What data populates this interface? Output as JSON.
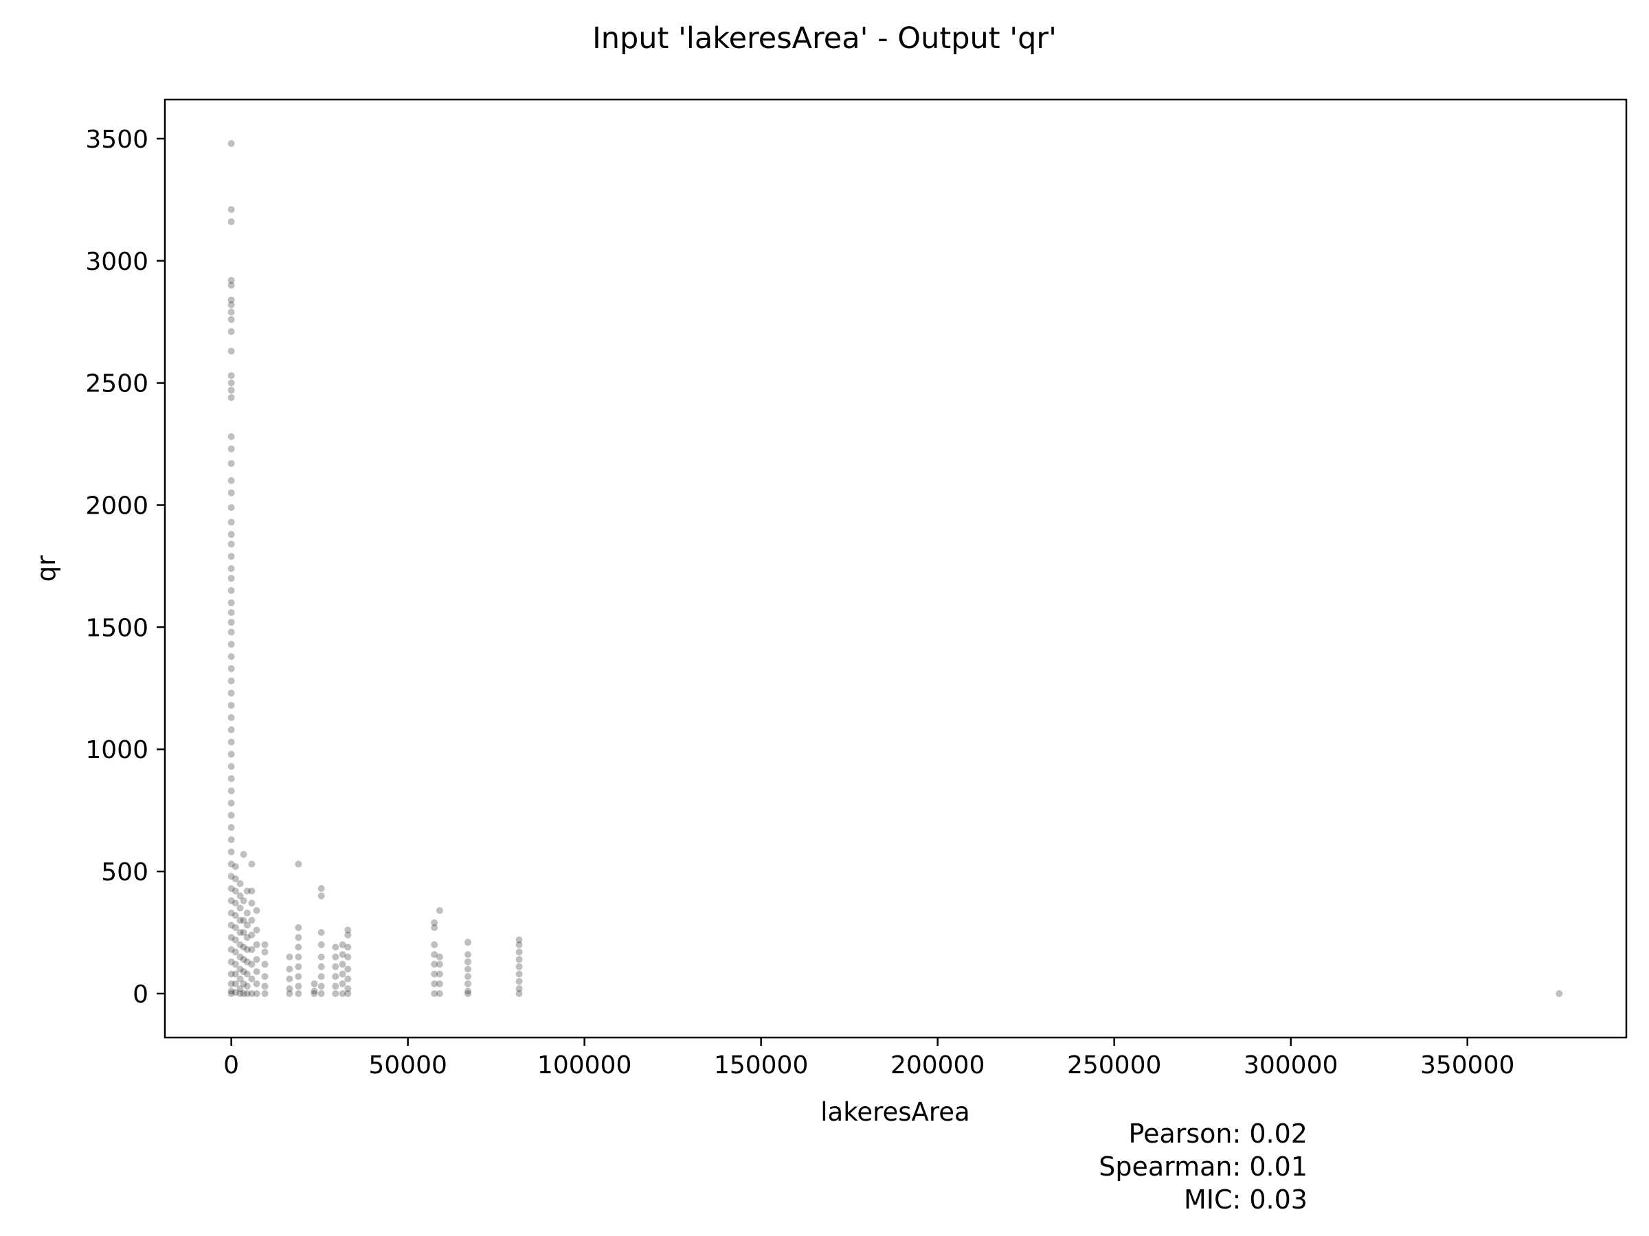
{
  "chart_data": {
    "type": "scatter",
    "title": "Input 'lakeresArea' - Output 'qr'",
    "xlabel": "lakeresArea",
    "ylabel": "qr",
    "xlim": [
      -18800,
      395000
    ],
    "ylim": [
      -180,
      3660
    ],
    "xticks": [
      0,
      50000,
      100000,
      150000,
      200000,
      250000,
      300000,
      350000
    ],
    "yticks": [
      0,
      500,
      1000,
      1500,
      2000,
      2500,
      3000,
      3500
    ],
    "grid": false,
    "legend": "none",
    "marker_color": "#000000",
    "marker_opacity": 0.25,
    "stats": [
      {
        "label": "Pearson:",
        "value": "0.02"
      },
      {
        "label": "Spearman:",
        "value": "0.01"
      },
      {
        "label": "MIC:",
        "value": "0.03"
      }
    ],
    "columns": [
      {
        "x": 0,
        "y": [
          3480,
          3210,
          3160,
          2920,
          2900,
          2840,
          2820,
          2790,
          2760,
          2710,
          2630,
          2530,
          2500,
          2470,
          2440,
          2280,
          2230,
          2170,
          2100,
          2050,
          1990,
          1930,
          1880,
          1840,
          1790,
          1740,
          1700,
          1650,
          1600,
          1560,
          1520,
          1480,
          1430,
          1380,
          1330,
          1280,
          1230,
          1180,
          1130,
          1080,
          1030,
          980,
          930,
          880,
          830,
          780,
          730,
          680,
          630,
          580,
          530,
          480,
          430,
          380,
          330,
          280,
          230,
          180,
          130,
          80,
          40,
          10,
          0
        ]
      },
      {
        "x": 1200,
        "y": [
          520,
          470,
          420,
          370,
          320,
          270,
          220,
          170,
          120,
          80,
          40,
          5
        ]
      },
      {
        "x": 2500,
        "y": [
          450,
          400,
          350,
          300,
          250,
          200,
          150,
          100,
          60,
          20,
          0
        ]
      },
      {
        "x": 3500,
        "y": [
          570,
          380,
          300,
          250,
          190,
          140,
          90,
          40,
          0
        ]
      },
      {
        "x": 4500,
        "y": [
          420,
          330,
          280,
          230,
          180,
          130,
          80,
          30,
          0
        ]
      },
      {
        "x": 5800,
        "y": [
          530,
          420,
          370,
          300,
          240,
          180,
          120,
          60,
          0
        ]
      },
      {
        "x": 7200,
        "y": [
          340,
          260,
          200,
          140,
          90,
          40,
          0
        ]
      },
      {
        "x": 9500,
        "y": [
          200,
          170,
          120,
          70,
          30,
          0
        ]
      },
      {
        "x": 16500,
        "y": [
          150,
          100,
          60,
          20,
          0
        ]
      },
      {
        "x": 19000,
        "y": [
          530,
          270,
          230,
          190,
          150,
          110,
          70,
          30,
          0
        ]
      },
      {
        "x": 23500,
        "y": [
          40,
          10,
          0
        ]
      },
      {
        "x": 25500,
        "y": [
          430,
          400,
          250,
          200,
          150,
          110,
          70,
          30,
          0
        ]
      },
      {
        "x": 29500,
        "y": [
          190,
          150,
          110,
          70,
          30,
          0
        ]
      },
      {
        "x": 31500,
        "y": [
          200,
          160,
          120,
          80,
          40,
          0
        ]
      },
      {
        "x": 33000,
        "y": [
          260,
          240,
          190,
          150,
          100,
          60,
          20,
          0
        ]
      },
      {
        "x": 57500,
        "y": [
          290,
          270,
          200,
          160,
          120,
          80,
          40,
          0
        ]
      },
      {
        "x": 59000,
        "y": [
          340,
          150,
          120,
          80,
          40,
          0
        ]
      },
      {
        "x": 67000,
        "y": [
          210,
          160,
          130,
          100,
          70,
          40,
          10,
          0
        ]
      },
      {
        "x": 81500,
        "y": [
          220,
          200,
          170,
          140,
          110,
          80,
          50,
          20,
          0
        ]
      },
      {
        "x": 376000,
        "y": [
          0
        ]
      }
    ]
  }
}
